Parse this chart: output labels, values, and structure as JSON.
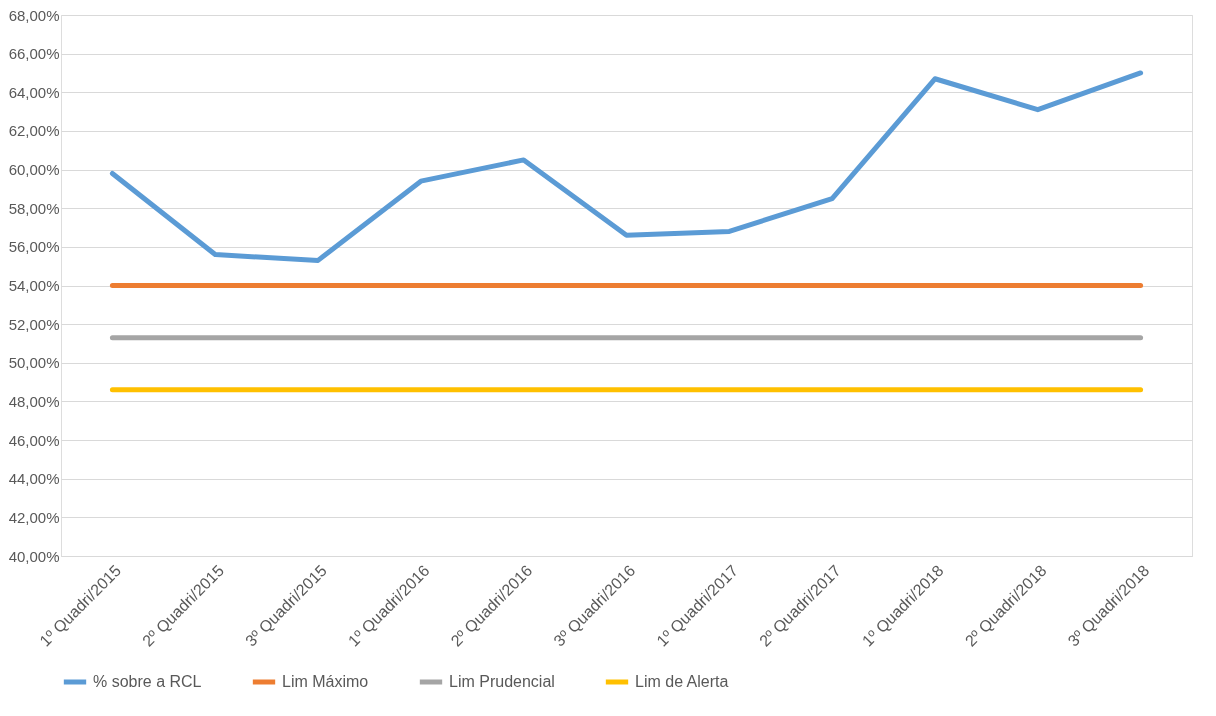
{
  "chart_data": {
    "type": "line",
    "categories": [
      "1º Quadri/2015",
      "2º Quadri/2015",
      "3º Quadri/2015",
      "1º Quadri/2016",
      "2º Quadri/2016",
      "3º Quadri/2016",
      "1º Quadri/2017",
      "2º Quadri/2017",
      "1º Quadri/2018",
      "2º Quadri/2018",
      "3º Quadri/2018"
    ],
    "series": [
      {
        "name": "% sobre a RCL",
        "color": "#5b9bd5",
        "values": [
          59.8,
          55.6,
          55.3,
          59.4,
          60.5,
          56.6,
          56.8,
          58.5,
          64.7,
          63.1,
          65.0
        ]
      },
      {
        "name": "Lim Máximo",
        "color": "#ed7d31",
        "values": [
          54,
          54,
          54,
          54,
          54,
          54,
          54,
          54,
          54,
          54,
          54
        ]
      },
      {
        "name": "Lim Prudencial",
        "color": "#a5a5a5",
        "values": [
          51.3,
          51.3,
          51.3,
          51.3,
          51.3,
          51.3,
          51.3,
          51.3,
          51.3,
          51.3,
          51.3
        ]
      },
      {
        "name": "Lim de Alerta",
        "color": "#ffc000",
        "values": [
          48.6,
          48.6,
          48.6,
          48.6,
          48.6,
          48.6,
          48.6,
          48.6,
          48.6,
          48.6,
          48.6
        ]
      }
    ],
    "ylim": [
      40,
      68
    ],
    "yticks": [
      {
        "value": 40,
        "label": "40,00%"
      },
      {
        "value": 42,
        "label": "42,00%"
      },
      {
        "value": 44,
        "label": "44,00%"
      },
      {
        "value": 46,
        "label": "46,00%"
      },
      {
        "value": 48,
        "label": "48,00%"
      },
      {
        "value": 50,
        "label": "50,00%"
      },
      {
        "value": 52,
        "label": "52,00%"
      },
      {
        "value": 54,
        "label": "54,00%"
      },
      {
        "value": 56,
        "label": "56,00%"
      },
      {
        "value": 58,
        "label": "58,00%"
      },
      {
        "value": 60,
        "label": "60,00%"
      },
      {
        "value": 62,
        "label": "62,00%"
      },
      {
        "value": 64,
        "label": "64,00%"
      },
      {
        "value": 66,
        "label": "66,00%"
      },
      {
        "value": 68,
        "label": "68,00%"
      }
    ],
    "grid": "y",
    "legend": "bottom",
    "marker": "none",
    "line_style": "solid"
  }
}
